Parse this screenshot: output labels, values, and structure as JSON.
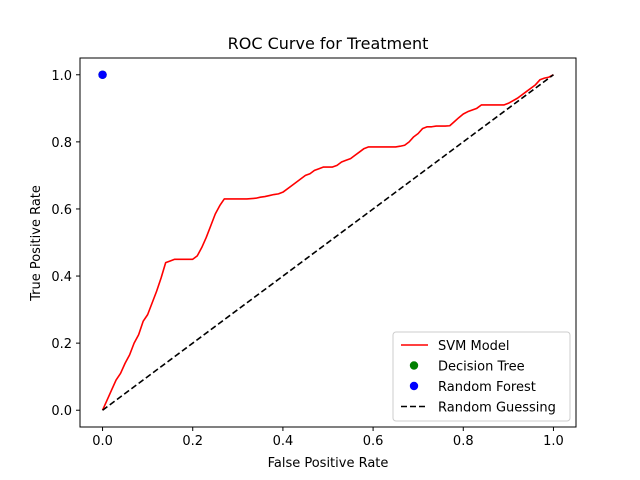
{
  "chart_data": {
    "type": "line",
    "title": "ROC Curve for Treatment",
    "xlabel": "False Positive Rate",
    "ylabel": "True Positive Rate",
    "xlim": [
      -0.05,
      1.05
    ],
    "ylim": [
      -0.05,
      1.05
    ],
    "xticks": [
      "0.0",
      "0.2",
      "0.4",
      "0.6",
      "0.8",
      "1.0"
    ],
    "yticks": [
      "0.0",
      "0.2",
      "0.4",
      "0.6",
      "0.8",
      "1.0"
    ],
    "grid": false,
    "legend_position": "lower-right",
    "series": [
      {
        "name": "SVM Model",
        "kind": "line",
        "color": "#ff0000",
        "dash": "solid",
        "x": [
          0.0,
          0.01,
          0.02,
          0.03,
          0.04,
          0.05,
          0.06,
          0.07,
          0.08,
          0.09,
          0.1,
          0.11,
          0.12,
          0.13,
          0.14,
          0.15,
          0.16,
          0.17,
          0.18,
          0.19,
          0.2,
          0.21,
          0.22,
          0.23,
          0.24,
          0.25,
          0.26,
          0.27,
          0.28,
          0.3,
          0.32,
          0.34,
          0.35,
          0.36,
          0.37,
          0.38,
          0.39,
          0.4,
          0.42,
          0.44,
          0.45,
          0.46,
          0.47,
          0.48,
          0.49,
          0.51,
          0.52,
          0.53,
          0.54,
          0.55,
          0.56,
          0.57,
          0.58,
          0.59,
          0.6,
          0.62,
          0.64,
          0.65,
          0.66,
          0.67,
          0.68,
          0.69,
          0.7,
          0.71,
          0.72,
          0.73,
          0.74,
          0.75,
          0.76,
          0.77,
          0.78,
          0.79,
          0.8,
          0.81,
          0.82,
          0.83,
          0.84,
          0.85,
          0.86,
          0.87,
          0.88,
          0.89,
          0.9,
          0.92,
          0.94,
          0.96,
          0.97,
          0.98,
          0.99,
          1.0
        ],
        "y": [
          0.0,
          0.03,
          0.06,
          0.09,
          0.11,
          0.14,
          0.165,
          0.2,
          0.225,
          0.265,
          0.285,
          0.32,
          0.355,
          0.395,
          0.44,
          0.445,
          0.45,
          0.45,
          0.45,
          0.45,
          0.45,
          0.46,
          0.485,
          0.515,
          0.55,
          0.585,
          0.61,
          0.63,
          0.63,
          0.63,
          0.63,
          0.632,
          0.635,
          0.637,
          0.64,
          0.643,
          0.645,
          0.65,
          0.67,
          0.69,
          0.7,
          0.705,
          0.715,
          0.72,
          0.725,
          0.725,
          0.73,
          0.74,
          0.745,
          0.75,
          0.76,
          0.77,
          0.78,
          0.785,
          0.785,
          0.785,
          0.785,
          0.785,
          0.787,
          0.79,
          0.8,
          0.815,
          0.825,
          0.84,
          0.845,
          0.845,
          0.847,
          0.847,
          0.847,
          0.848,
          0.86,
          0.872,
          0.883,
          0.89,
          0.895,
          0.9,
          0.91,
          0.91,
          0.91,
          0.91,
          0.91,
          0.91,
          0.915,
          0.93,
          0.95,
          0.97,
          0.985,
          0.99,
          0.993,
          1.0
        ]
      },
      {
        "name": "Decision Tree",
        "kind": "scatter",
        "color": "#008000",
        "x": [
          0.0
        ],
        "y": [
          1.0
        ]
      },
      {
        "name": "Random Forest",
        "kind": "scatter",
        "color": "#0000ff",
        "x": [
          0.0
        ],
        "y": [
          1.0
        ]
      },
      {
        "name": "Random Guessing",
        "kind": "line",
        "color": "#000000",
        "dash": "dashed",
        "x": [
          0.0,
          1.0
        ],
        "y": [
          0.0,
          1.0
        ]
      }
    ]
  }
}
